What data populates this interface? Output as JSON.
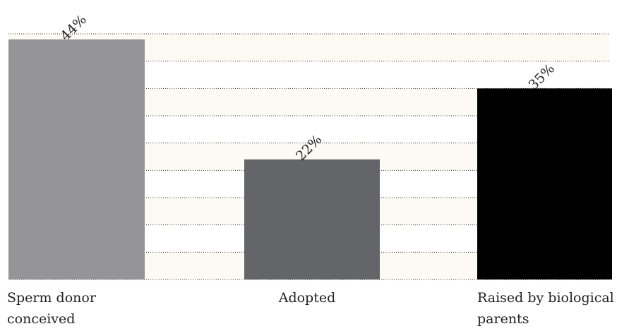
{
  "chart_data": {
    "type": "bar",
    "categories": [
      "Sperm donor conceived",
      "Adopted",
      "Raised by biological parents"
    ],
    "values": [
      44,
      22,
      35
    ],
    "data_labels": [
      "44%",
      "22%",
      "35%"
    ],
    "colors": [
      "#959598",
      "#646569",
      "#000000"
    ],
    "ylim": [
      0,
      45
    ],
    "grid": true,
    "legend": "none"
  }
}
